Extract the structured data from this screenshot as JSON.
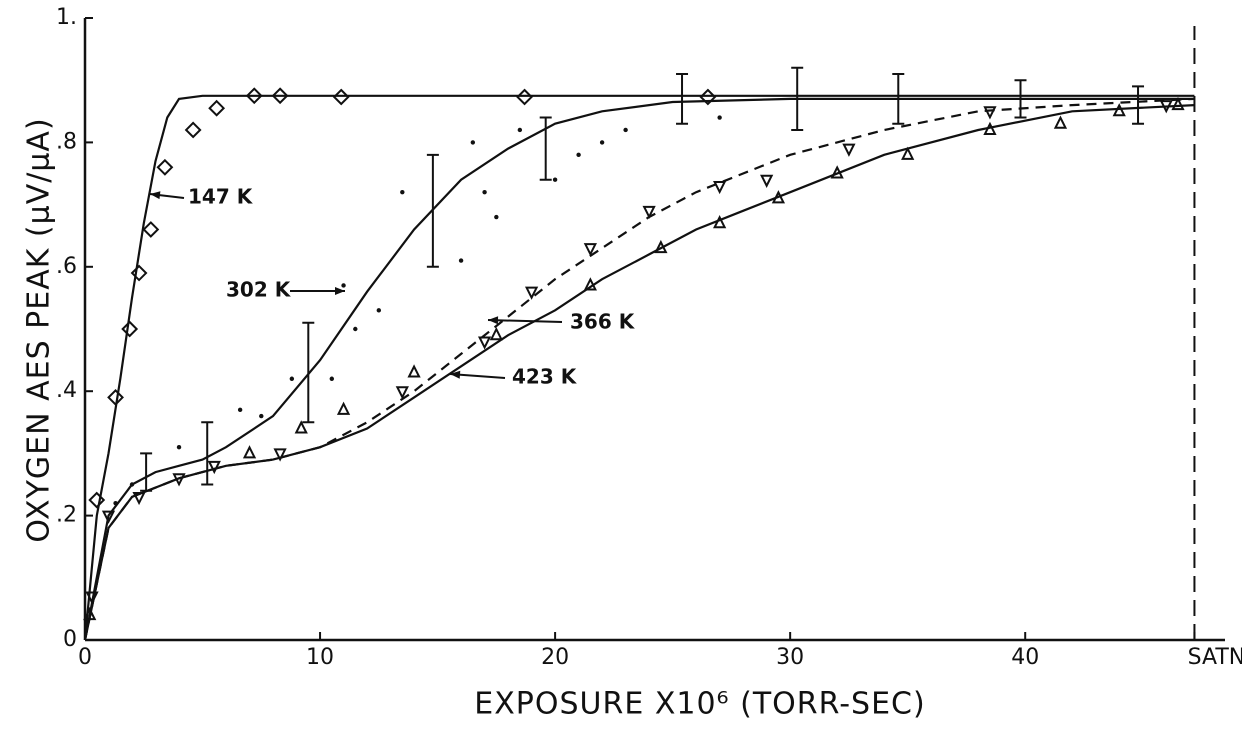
{
  "chart_data": {
    "type": "line",
    "xlabel": "EXPOSURE X10⁶ (TORR-SEC)",
    "ylabel": "OXYGEN AES PEAK (μV/μA)",
    "xlim": [
      0,
      48.5
    ],
    "ylim": [
      0,
      1.0
    ],
    "xticks": [
      0,
      10,
      20,
      30,
      40,
      {
        "value": 47.2,
        "label": "SATN"
      }
    ],
    "yticks": [
      0,
      {
        "value": 0.2,
        "label": ".2"
      },
      {
        "value": 0.4,
        "label": ".4"
      },
      {
        "value": 0.6,
        "label": ".6"
      },
      {
        "value": 0.8,
        "label": ".8"
      },
      {
        "value": 1.0,
        "label": "1."
      }
    ],
    "grid": false,
    "color": "#111111",
    "series": [
      {
        "name": "147 K",
        "marker": "diamond",
        "dash": "solid",
        "x": [
          0.5,
          1.3,
          1.9,
          2.3,
          2.8,
          3.4,
          4.6,
          5.6,
          7.2,
          8.3,
          10.9,
          18.7,
          26.5
        ],
        "values": [
          0.225,
          0.39,
          0.5,
          0.59,
          0.66,
          0.76,
          0.82,
          0.855,
          0.875,
          0.875,
          0.873,
          0.873,
          0.873
        ],
        "fit": {
          "x": [
            0,
            0.5,
            1,
            1.5,
            2,
            2.5,
            3,
            3.5,
            4,
            5,
            10,
            20,
            30,
            40,
            47.2
          ],
          "values": [
            0,
            0.2,
            0.3,
            0.42,
            0.55,
            0.67,
            0.77,
            0.84,
            0.87,
            0.875,
            0.875,
            0.875,
            0.875,
            0.875,
            0.875
          ]
        }
      },
      {
        "name": "302 K",
        "marker": "dot",
        "dash": "solid",
        "x": [
          1.3,
          2,
          2.6,
          4,
          5.2,
          6.6,
          7.5,
          8.8,
          9.5,
          10.5,
          11,
          11.5,
          12.5,
          13.5,
          14.8,
          16,
          16.5,
          17,
          17.5,
          18.5,
          19.6,
          20,
          21,
          22,
          23,
          25.4,
          27,
          30.3,
          34.6,
          39.8,
          44.8
        ],
        "values": [
          0.22,
          0.25,
          0.27,
          0.31,
          0.3,
          0.37,
          0.36,
          0.42,
          0.43,
          0.42,
          0.57,
          0.5,
          0.53,
          0.72,
          0.69,
          0.61,
          0.8,
          0.72,
          0.68,
          0.82,
          0.79,
          0.74,
          0.78,
          0.8,
          0.82,
          0.87,
          0.84,
          0.87,
          0.87,
          0.87,
          0.86
        ],
        "errors": [
          null,
          null,
          0.03,
          null,
          0.05,
          null,
          null,
          null,
          0.08,
          null,
          null,
          null,
          null,
          null,
          0.09,
          null,
          null,
          null,
          null,
          null,
          0.05,
          null,
          null,
          null,
          null,
          0.04,
          null,
          0.05,
          0.04,
          0.03,
          0.03
        ],
        "fit": {
          "x": [
            0,
            1,
            2,
            3,
            4,
            5,
            6,
            8,
            10,
            12,
            14,
            16,
            18,
            20,
            22,
            25,
            30,
            40,
            47.2
          ],
          "values": [
            0,
            0.2,
            0.25,
            0.27,
            0.28,
            0.29,
            0.31,
            0.36,
            0.45,
            0.56,
            0.66,
            0.74,
            0.79,
            0.83,
            0.85,
            0.865,
            0.87,
            0.87,
            0.87
          ]
        }
      },
      {
        "name": "366 K",
        "marker": "triangle-down",
        "dash": "dashed",
        "x": [
          0.3,
          1,
          2.3,
          4,
          5.5,
          8.3,
          13.5,
          17,
          19,
          21.5,
          24,
          27,
          29,
          32.5,
          38.5,
          46
        ],
        "values": [
          0.07,
          0.2,
          0.23,
          0.26,
          0.28,
          0.3,
          0.4,
          0.48,
          0.56,
          0.63,
          0.69,
          0.73,
          0.74,
          0.79,
          0.85,
          0.86
        ],
        "fit": {
          "x": [
            0,
            1,
            2,
            4,
            6,
            8,
            10,
            12,
            14,
            16,
            18,
            20,
            22,
            24,
            26,
            28,
            30,
            34,
            38,
            42,
            47.2
          ],
          "values": [
            0,
            0.18,
            0.23,
            0.26,
            0.28,
            0.29,
            0.31,
            0.35,
            0.4,
            0.46,
            0.52,
            0.58,
            0.63,
            0.68,
            0.72,
            0.75,
            0.78,
            0.82,
            0.85,
            0.86,
            0.87
          ]
        }
      },
      {
        "name": "423 K",
        "marker": "triangle-up",
        "dash": "solid",
        "x": [
          0.2,
          7,
          9.2,
          11,
          14,
          17.5,
          21.5,
          24.5,
          27,
          29.5,
          32,
          35,
          38.5,
          41.5,
          44,
          46.5
        ],
        "values": [
          0.04,
          0.3,
          0.34,
          0.37,
          0.43,
          0.49,
          0.57,
          0.63,
          0.67,
          0.71,
          0.75,
          0.78,
          0.82,
          0.83,
          0.85,
          0.86
        ],
        "fit": {
          "x": [
            0,
            1,
            2,
            4,
            6,
            8,
            10,
            12,
            14,
            16,
            18,
            20,
            22,
            24,
            26,
            28,
            30,
            34,
            38,
            42,
            47.2
          ],
          "values": [
            0,
            0.18,
            0.23,
            0.26,
            0.28,
            0.29,
            0.31,
            0.34,
            0.39,
            0.44,
            0.49,
            0.53,
            0.58,
            0.62,
            0.66,
            0.69,
            0.72,
            0.78,
            0.82,
            0.85,
            0.86
          ]
        }
      }
    ]
  }
}
